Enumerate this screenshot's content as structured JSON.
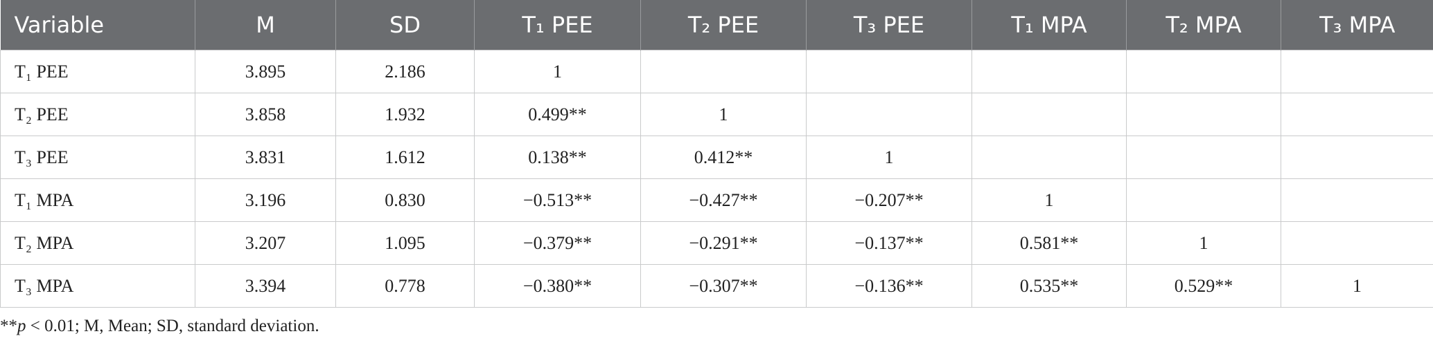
{
  "table": {
    "header": [
      "Variable",
      "M",
      "SD",
      "T₁ PEE",
      "T₂ PEE",
      "T₃ PEE",
      "T₁ MPA",
      "T₂ MPA",
      "T₃ MPA"
    ],
    "rows": [
      [
        "T₁ PEE",
        "3.895",
        "2.186",
        "1",
        null,
        null,
        null,
        null,
        null
      ],
      [
        "T₂ PEE",
        "3.858",
        "1.932",
        "0.499**",
        "1",
        null,
        null,
        null,
        null
      ],
      [
        "T₃ PEE",
        "3.831",
        "1.612",
        "0.138**",
        "0.412**",
        "1",
        null,
        null,
        null
      ],
      [
        "T₁ MPA",
        "3.196",
        "0.830",
        "−0.513**",
        "−0.427**",
        "−0.207**",
        "1",
        null,
        null
      ],
      [
        "T₂ MPA",
        "3.207",
        "1.095",
        "−0.379**",
        "−0.291**",
        "−0.137**",
        "0.581**",
        "1",
        null
      ],
      [
        "T₃ MPA",
        "3.394",
        "0.778",
        "−0.380**",
        "−0.307**",
        "−0.136**",
        "0.535**",
        "0.529**",
        "1"
      ]
    ]
  },
  "footnote": [
    "**",
    "p",
    " < 0.01; M, Mean; SD, standard deviation."
  ]
}
